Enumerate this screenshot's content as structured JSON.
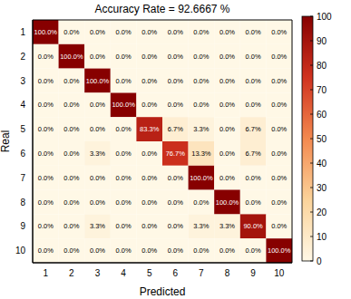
{
  "chart_data": {
    "type": "heatmap",
    "title": "Accuracy Rate = 92.6667 %",
    "x_label": "Predicted",
    "y_label": "Real",
    "xlim": [
      0.5,
      10.5
    ],
    "xticks": [
      1,
      2,
      3,
      4,
      5,
      6,
      7,
      8,
      9,
      10
    ],
    "ylim": [
      10.5,
      0.5
    ],
    "yticks": [
      1,
      2,
      3,
      4,
      5,
      6,
      7,
      8,
      9,
      10
    ],
    "data_labels": true,
    "values": [
      [
        100,
        0,
        0,
        0,
        0,
        0,
        0,
        0,
        0,
        0
      ],
      [
        0,
        100,
        0,
        0,
        0,
        0,
        0,
        0,
        0,
        0
      ],
      [
        0,
        0,
        100,
        0,
        0,
        0,
        0,
        0,
        0,
        0
      ],
      [
        0,
        0,
        0,
        100,
        0,
        0,
        0,
        0,
        0,
        0
      ],
      [
        0,
        0,
        0,
        0,
        83.3,
        6.7,
        3.3,
        0,
        6.7,
        0
      ],
      [
        0,
        0,
        3.3,
        0,
        0,
        76.7,
        13.3,
        0,
        6.7,
        0
      ],
      [
        0,
        0,
        0,
        0,
        0,
        0,
        100,
        0,
        0,
        0
      ],
      [
        0,
        0,
        0,
        0,
        0,
        0,
        0,
        100,
        0,
        0
      ],
      [
        0,
        0,
        3.3,
        0,
        0,
        0,
        3.3,
        3.3,
        90,
        0
      ],
      [
        0,
        0,
        0,
        0,
        0,
        0,
        0,
        0,
        0,
        100
      ]
    ],
    "value_labels": [
      [
        "100.0%",
        "0.0%",
        "0.0%",
        "0.0%",
        "0.0%",
        "0.0%",
        "0.0%",
        "0.0%",
        "0.0%",
        "0.0%"
      ],
      [
        "0.0%",
        "100.0%",
        "0.0%",
        "0.0%",
        "0.0%",
        "0.0%",
        "0.0%",
        "0.0%",
        "0.0%",
        "0.0%"
      ],
      [
        "0.0%",
        "0.0%",
        "100.0%",
        "0.0%",
        "0.0%",
        "0.0%",
        "0.0%",
        "0.0%",
        "0.0%",
        "0.0%"
      ],
      [
        "0.0%",
        "0.0%",
        "0.0%",
        "100.0%",
        "0.0%",
        "0.0%",
        "0.0%",
        "0.0%",
        "0.0%",
        "0.0%"
      ],
      [
        "0.0%",
        "0.0%",
        "0.0%",
        "0.0%",
        "83.3%",
        "6.7%",
        "3.3%",
        "0.0%",
        "6.7%",
        "0.0%"
      ],
      [
        "0.0%",
        "0.0%",
        "3.3%",
        "0.0%",
        "0.0%",
        "76.7%",
        "13.3%",
        "0.0%",
        "6.7%",
        "0.0%"
      ],
      [
        "0.0%",
        "0.0%",
        "0.0%",
        "0.0%",
        "0.0%",
        "0.0%",
        "100.0%",
        "0.0%",
        "0.0%",
        "0.0%"
      ],
      [
        "0.0%",
        "0.0%",
        "0.0%",
        "0.0%",
        "0.0%",
        "0.0%",
        "0.0%",
        "100.0%",
        "0.0%",
        "0.0%"
      ],
      [
        "0.0%",
        "0.0%",
        "3.3%",
        "0.0%",
        "0.0%",
        "0.0%",
        "3.3%",
        "3.3%",
        "90.0%",
        "0.0%"
      ],
      [
        "0.0%",
        "0.0%",
        "0.0%",
        "0.0%",
        "0.0%",
        "0.0%",
        "0.0%",
        "0.0%",
        "0.0%",
        "100.0%"
      ]
    ],
    "colorbar_lim": [
      0,
      100
    ],
    "colorbar_ticks": [
      0,
      10,
      20,
      30,
      40,
      50,
      60,
      70,
      80,
      90,
      100
    ]
  }
}
